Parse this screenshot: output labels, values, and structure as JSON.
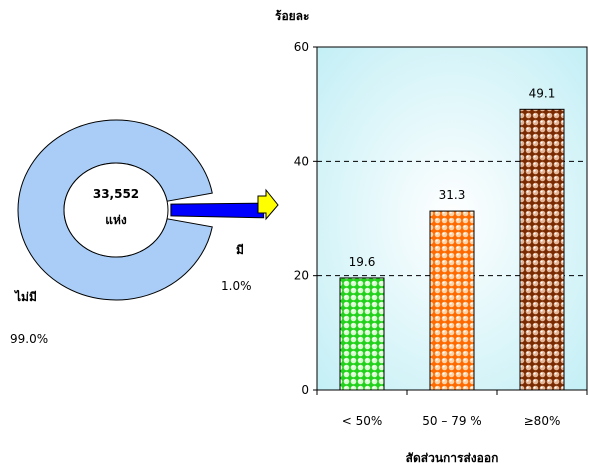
{
  "chart_data": [
    {
      "type": "pie",
      "center_label": [
        "33,552",
        "แห่ง"
      ],
      "slices": [
        {
          "label": "ไม่มี",
          "percent_label": "99.0%",
          "value": 99.0,
          "color": "#a9cdf6"
        },
        {
          "label": "มี",
          "percent_label": "1.0%",
          "value": 1.0,
          "color": "#0000ff"
        }
      ]
    },
    {
      "type": "bar",
      "ylabel": "ร้อยละ",
      "xlabel": "สัดส่วนการส่งออก",
      "categories": [
        "< 50%",
        "50 – 79 %",
        "≥80%"
      ],
      "values": [
        19.6,
        31.3,
        49.1
      ],
      "value_labels": [
        "19.6",
        "31.3",
        "49.1"
      ],
      "colors": [
        "#22d11b",
        "#ff6a00",
        "#8b3100"
      ],
      "ylim": [
        0,
        60
      ],
      "yticks": [
        0,
        20,
        40,
        60
      ],
      "grid": true
    }
  ]
}
